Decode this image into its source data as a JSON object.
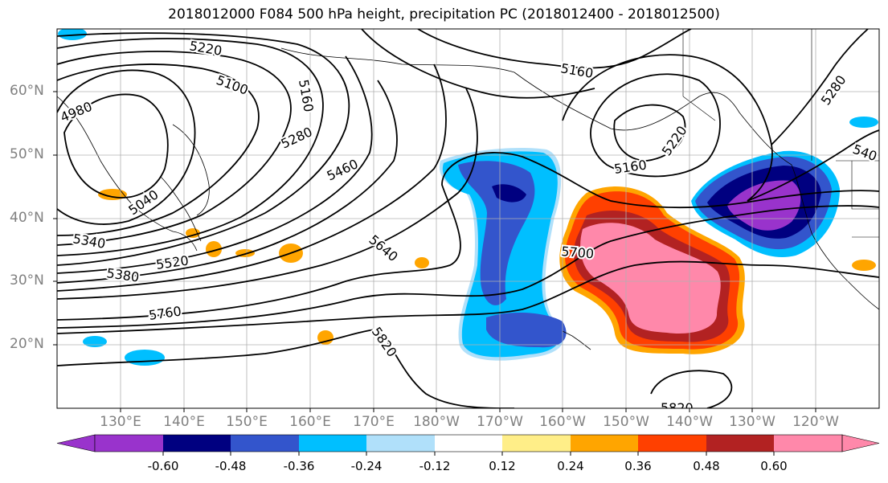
{
  "title": "2018012000 F084 500 hPa height, precipitation PC (2018012400 - 2018012500)",
  "lat_labels": [
    "60°N",
    "50°N",
    "40°N",
    "30°N",
    "20°N"
  ],
  "lon_labels": [
    "130°E",
    "140°E",
    "150°E",
    "160°E",
    "170°E",
    "180°W",
    "170°W",
    "160°W",
    "150°W",
    "140°W",
    "130°W",
    "120°W"
  ],
  "contour_labels": [
    "5220",
    "5100",
    "4980",
    "5160",
    "5280",
    "5040",
    "5340",
    "5380",
    "5520",
    "5460",
    "5640",
    "5700",
    "5760",
    "5820",
    "5160",
    "5220",
    "5160",
    "5280",
    "540",
    "5820"
  ],
  "colorbar": {
    "colors": [
      "#9933cc",
      "#000080",
      "#3355cc",
      "#00bfff",
      "#b0e0fa",
      "#ffffff",
      "#ffee88",
      "#ffa500",
      "#ff4000",
      "#b22222",
      "#ff88aa"
    ],
    "tick_labels": [
      "-0.60",
      "-0.48",
      "-0.36",
      "-0.24",
      "-0.12",
      "0.12",
      "0.24",
      "0.36",
      "0.48",
      "0.60"
    ]
  },
  "colors": {
    "grid": "#b0b0b0",
    "tick_label": "#808080",
    "contour": "#000000"
  }
}
